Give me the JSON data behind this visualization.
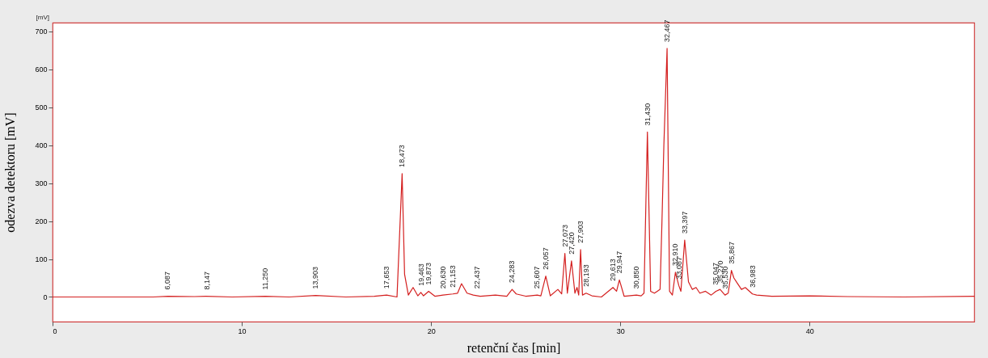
{
  "chart_data": {
    "type": "line",
    "xlabel": "retenční čas [min]",
    "ylabel": "odezva detektoru [mV]",
    "xlim": [
      0,
      48.7
    ],
    "ylim": [
      -65,
      723
    ],
    "xticks": [
      0,
      10,
      20,
      30,
      40
    ],
    "yticks": [
      0,
      100,
      200,
      300,
      400,
      500,
      600,
      700
    ],
    "grid": false,
    "marker": "none",
    "line_style": "solid",
    "series": [
      {
        "color": "#d42020",
        "x": [
          0,
          5.3,
          6.1,
          7.5,
          8.1,
          9.5,
          11.25,
          12.5,
          13.9,
          15.5,
          17.0,
          17.65,
          18.2,
          18.47,
          18.6,
          18.8,
          19.05,
          19.3,
          19.46,
          19.6,
          19.87,
          20.2,
          20.63,
          21.15,
          21.4,
          21.61,
          21.9,
          22.23,
          22.6,
          23.4,
          24.0,
          24.28,
          24.5,
          25.0,
          25.61,
          25.8,
          26.06,
          26.3,
          26.7,
          26.9,
          27.07,
          27.2,
          27.42,
          27.6,
          27.71,
          27.8,
          27.9,
          28.0,
          28.19,
          28.5,
          29.0,
          29.61,
          29.8,
          29.95,
          30.2,
          30.85,
          31.1,
          31.25,
          31.43,
          31.6,
          31.8,
          31.95,
          32.1,
          32.2,
          32.3,
          32.47,
          32.6,
          32.75,
          32.91,
          33.09,
          33.2,
          33.4,
          33.6,
          33.8,
          34.0,
          34.2,
          34.5,
          34.8,
          35.05,
          35.27,
          35.53,
          35.7,
          35.87,
          36.0,
          36.2,
          36.4,
          36.6,
          36.98,
          37.2,
          38.0,
          40.0,
          42.0,
          45.0,
          48.7
        ],
        "values": [
          0,
          0,
          2,
          1,
          2,
          0,
          2,
          0,
          4,
          0,
          2,
          5,
          0,
          325,
          60,
          5,
          25,
          3,
          12,
          3,
          15,
          2,
          5,
          8,
          10,
          35,
          10,
          5,
          2,
          5,
          2,
          20,
          8,
          2,
          5,
          3,
          55,
          3,
          20,
          8,
          115,
          10,
          95,
          10,
          25,
          5,
          125,
          5,
          10,
          3,
          0,
          25,
          15,
          45,
          2,
          5,
          3,
          10,
          435,
          15,
          10,
          15,
          20,
          200,
          400,
          655,
          15,
          5,
          65,
          30,
          15,
          150,
          40,
          20,
          25,
          10,
          15,
          5,
          15,
          20,
          5,
          10,
          70,
          50,
          35,
          20,
          25,
          8,
          5,
          2,
          3,
          1,
          0,
          2
        ]
      }
    ],
    "annotations": [
      "[mV]",
      {
        "text": "6,087",
        "x": 6.087,
        "y": 2
      },
      {
        "text": "8,147",
        "x": 8.147,
        "y": 2
      },
      {
        "text": "11,250",
        "x": 11.25,
        "y": 2
      },
      {
        "text": "13,903",
        "x": 13.903,
        "y": 4
      },
      {
        "text": "17,653",
        "x": 17.653,
        "y": 5
      },
      {
        "text": "18,473",
        "x": 18.473,
        "y": 325
      },
      {
        "text": "19,463",
        "x": 19.463,
        "y": 12
      },
      {
        "text": "19,873",
        "x": 19.873,
        "y": 15
      },
      {
        "text": "20,630",
        "x": 20.63,
        "y": 5
      },
      {
        "text": "21,153",
        "x": 21.153,
        "y": 8
      },
      {
        "text": "22,437",
        "x": 22.437,
        "y": 5
      },
      {
        "text": "24,283",
        "x": 24.283,
        "y": 20
      },
      {
        "text": "25,607",
        "x": 25.607,
        "y": 5
      },
      {
        "text": "26,057",
        "x": 26.057,
        "y": 55
      },
      {
        "text": "27,073",
        "x": 27.073,
        "y": 115
      },
      {
        "text": "27,420",
        "x": 27.42,
        "y": 95
      },
      {
        "text": "27,903",
        "x": 27.903,
        "y": 125
      },
      {
        "text": "28,193",
        "x": 28.193,
        "y": 10
      },
      {
        "text": "29,613",
        "x": 29.613,
        "y": 25
      },
      {
        "text": "29,947",
        "x": 29.947,
        "y": 45
      },
      {
        "text": "30,850",
        "x": 30.85,
        "y": 5
      },
      {
        "text": "31,430",
        "x": 31.43,
        "y": 435
      },
      {
        "text": "32,467",
        "x": 32.467,
        "y": 655
      },
      {
        "text": "32,910",
        "x": 32.91,
        "y": 65
      },
      {
        "text": "33,087",
        "x": 33.087,
        "y": 30
      },
      {
        "text": "33,397",
        "x": 33.397,
        "y": 150
      },
      {
        "text": "35,047",
        "x": 35.047,
        "y": 15
      },
      {
        "text": "35,270",
        "x": 35.27,
        "y": 20
      },
      {
        "text": "35,530",
        "x": 35.53,
        "y": 5
      },
      {
        "text": "35,867",
        "x": 35.867,
        "y": 70
      },
      {
        "text": "36,983",
        "x": 36.983,
        "y": 8
      }
    ]
  }
}
